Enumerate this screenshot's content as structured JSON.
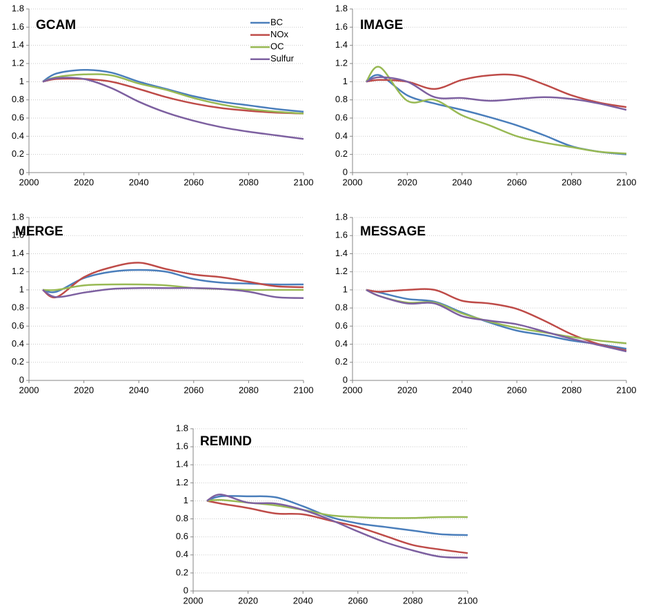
{
  "chart_data": [
    {
      "type": "line",
      "title": "GCAM",
      "legend": true,
      "grid": true,
      "x": [
        2005,
        2010,
        2020,
        2030,
        2040,
        2050,
        2060,
        2070,
        2080,
        2090,
        2100
      ],
      "xlim": [
        2000,
        2100
      ],
      "xticks": [
        2000,
        2020,
        2040,
        2060,
        2080,
        2100
      ],
      "ylim": [
        0,
        1.8
      ],
      "yticks": [
        0,
        0.2,
        0.4,
        0.6,
        0.8,
        1,
        1.2,
        1.4,
        1.6,
        1.8
      ],
      "series": [
        {
          "name": "BC",
          "color": "#4a7ebb",
          "values": [
            1.0,
            1.09,
            1.13,
            1.1,
            1.0,
            0.92,
            0.84,
            0.78,
            0.74,
            0.7,
            0.67
          ]
        },
        {
          "name": "NOx",
          "color": "#be4b48",
          "values": [
            1.0,
            1.03,
            1.03,
            1.0,
            0.92,
            0.83,
            0.76,
            0.71,
            0.68,
            0.66,
            0.65
          ]
        },
        {
          "name": "OC",
          "color": "#98b954",
          "values": [
            1.0,
            1.05,
            1.08,
            1.07,
            0.98,
            0.91,
            0.82,
            0.75,
            0.7,
            0.67,
            0.65
          ]
        },
        {
          "name": "Sulfur",
          "color": "#7d60a0",
          "values": [
            1.0,
            1.04,
            1.03,
            0.93,
            0.78,
            0.66,
            0.57,
            0.5,
            0.45,
            0.41,
            0.37
          ]
        }
      ]
    },
    {
      "type": "line",
      "title": "IMAGE",
      "legend": false,
      "grid": true,
      "x": [
        2005,
        2010,
        2020,
        2030,
        2040,
        2050,
        2060,
        2070,
        2080,
        2090,
        2100
      ],
      "xlim": [
        2000,
        2100
      ],
      "xticks": [
        2000,
        2020,
        2040,
        2060,
        2080,
        2100
      ],
      "ylim": [
        0,
        1.8
      ],
      "yticks": [
        0,
        0.2,
        0.4,
        0.6,
        0.8,
        1,
        1.2,
        1.4,
        1.6,
        1.8
      ],
      "series": [
        {
          "name": "BC",
          "color": "#4a7ebb",
          "values": [
            1.0,
            1.07,
            0.85,
            0.76,
            0.69,
            0.61,
            0.52,
            0.41,
            0.29,
            0.23,
            0.2
          ]
        },
        {
          "name": "NOx",
          "color": "#be4b48",
          "values": [
            1.0,
            1.02,
            1.0,
            0.92,
            1.02,
            1.07,
            1.07,
            0.97,
            0.85,
            0.77,
            0.72
          ]
        },
        {
          "name": "OC",
          "color": "#98b954",
          "values": [
            1.0,
            1.16,
            0.79,
            0.8,
            0.63,
            0.52,
            0.4,
            0.33,
            0.28,
            0.23,
            0.21
          ]
        },
        {
          "name": "Sulfur",
          "color": "#7d60a0",
          "values": [
            1.0,
            1.05,
            1.0,
            0.83,
            0.82,
            0.79,
            0.81,
            0.83,
            0.81,
            0.76,
            0.69
          ]
        }
      ]
    },
    {
      "type": "line",
      "title": "MERGE",
      "legend": false,
      "grid": true,
      "x": [
        2005,
        2010,
        2020,
        2030,
        2040,
        2050,
        2060,
        2070,
        2080,
        2090,
        2100
      ],
      "xlim": [
        2000,
        2100
      ],
      "xticks": [
        2000,
        2020,
        2040,
        2060,
        2080,
        2100
      ],
      "ylim": [
        0,
        1.8
      ],
      "yticks": [
        0,
        0.2,
        0.4,
        0.6,
        0.8,
        1,
        1.2,
        1.4,
        1.6,
        1.8
      ],
      "series": [
        {
          "name": "BC",
          "color": "#4a7ebb",
          "values": [
            1.0,
            0.98,
            1.13,
            1.2,
            1.22,
            1.2,
            1.12,
            1.08,
            1.07,
            1.06,
            1.06
          ]
        },
        {
          "name": "NOx",
          "color": "#be4b48",
          "values": [
            1.0,
            0.92,
            1.14,
            1.25,
            1.3,
            1.23,
            1.17,
            1.14,
            1.09,
            1.04,
            1.03
          ]
        },
        {
          "name": "OC",
          "color": "#98b954",
          "values": [
            1.0,
            1.0,
            1.05,
            1.06,
            1.06,
            1.05,
            1.02,
            1.01,
            1.0,
            1.0,
            1.0
          ]
        },
        {
          "name": "Sulfur",
          "color": "#7d60a0",
          "values": [
            1.0,
            0.92,
            0.97,
            1.01,
            1.02,
            1.02,
            1.02,
            1.01,
            0.98,
            0.92,
            0.91
          ]
        }
      ]
    },
    {
      "type": "line",
      "title": "MESSAGE",
      "legend": false,
      "grid": true,
      "x": [
        2005,
        2010,
        2020,
        2030,
        2040,
        2050,
        2060,
        2070,
        2080,
        2090,
        2100
      ],
      "xlim": [
        2000,
        2100
      ],
      "xticks": [
        2000,
        2020,
        2040,
        2060,
        2080,
        2100
      ],
      "ylim": [
        0,
        1.8
      ],
      "yticks": [
        0,
        0.2,
        0.4,
        0.6,
        0.8,
        1,
        1.2,
        1.4,
        1.6,
        1.8
      ],
      "series": [
        {
          "name": "BC",
          "color": "#4a7ebb",
          "values": [
            1.0,
            0.97,
            0.9,
            0.87,
            0.75,
            0.64,
            0.55,
            0.5,
            0.44,
            0.4,
            0.35
          ]
        },
        {
          "name": "NOx",
          "color": "#be4b48",
          "values": [
            1.0,
            0.98,
            1.0,
            1.0,
            0.88,
            0.85,
            0.79,
            0.66,
            0.51,
            0.4,
            0.33
          ]
        },
        {
          "name": "OC",
          "color": "#98b954",
          "values": [
            1.0,
            0.93,
            0.86,
            0.86,
            0.74,
            0.65,
            0.58,
            0.53,
            0.48,
            0.44,
            0.41
          ]
        },
        {
          "name": "Sulfur",
          "color": "#7d60a0",
          "values": [
            1.0,
            0.93,
            0.85,
            0.85,
            0.71,
            0.66,
            0.62,
            0.54,
            0.46,
            0.39,
            0.32
          ]
        }
      ]
    },
    {
      "type": "line",
      "title": "REMIND",
      "legend": false,
      "grid": true,
      "x": [
        2005,
        2010,
        2020,
        2030,
        2040,
        2050,
        2060,
        2070,
        2080,
        2090,
        2100
      ],
      "xlim": [
        2000,
        2100
      ],
      "xticks": [
        2000,
        2020,
        2040,
        2060,
        2080,
        2100
      ],
      "ylim": [
        0,
        1.8
      ],
      "yticks": [
        0,
        0.2,
        0.4,
        0.6,
        0.8,
        1,
        1.2,
        1.4,
        1.6,
        1.8
      ],
      "series": [
        {
          "name": "BC",
          "color": "#4a7ebb",
          "values": [
            1.0,
            1.05,
            1.05,
            1.04,
            0.94,
            0.82,
            0.75,
            0.71,
            0.67,
            0.63,
            0.62
          ]
        },
        {
          "name": "NOx",
          "color": "#be4b48",
          "values": [
            1.0,
            0.97,
            0.92,
            0.86,
            0.85,
            0.78,
            0.71,
            0.61,
            0.51,
            0.46,
            0.42
          ]
        },
        {
          "name": "OC",
          "color": "#98b954",
          "values": [
            1.0,
            1.01,
            0.98,
            0.95,
            0.9,
            0.84,
            0.82,
            0.81,
            0.81,
            0.82,
            0.82
          ]
        },
        {
          "name": "Sulfur",
          "color": "#7d60a0",
          "values": [
            1.0,
            1.07,
            0.98,
            0.97,
            0.9,
            0.79,
            0.66,
            0.54,
            0.45,
            0.38,
            0.37
          ]
        }
      ]
    }
  ]
}
